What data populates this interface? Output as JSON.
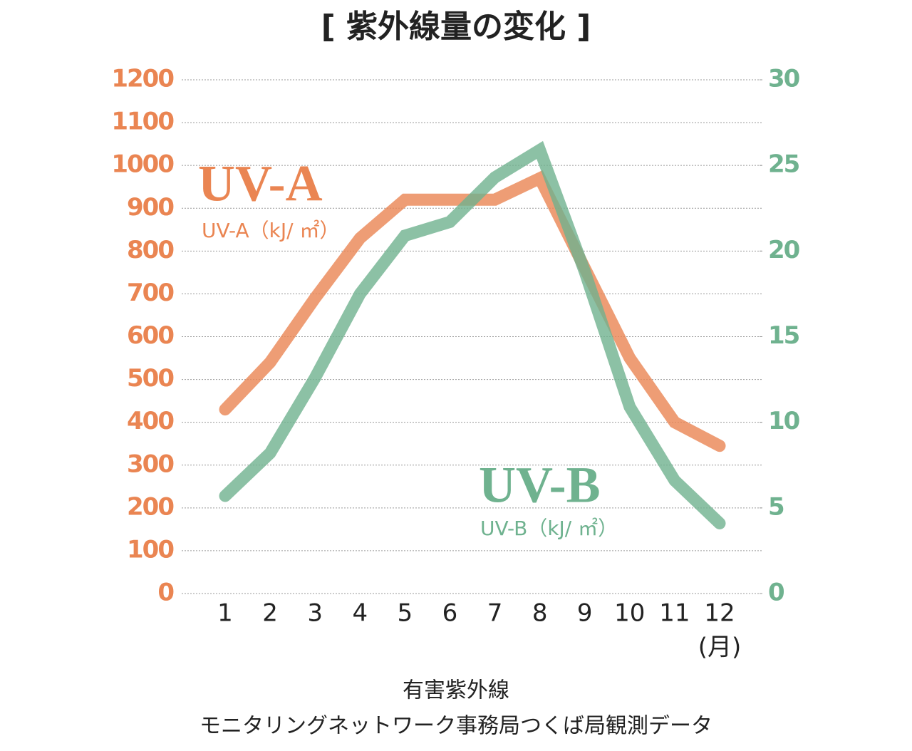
{
  "chart_data": {
    "type": "line",
    "title": "[ 紫外線量の変化 ]",
    "categories": [
      "1",
      "2",
      "3",
      "4",
      "5",
      "6",
      "7",
      "8",
      "9",
      "10",
      "11",
      "12"
    ],
    "x_unit": "(月)",
    "series": [
      {
        "name": "UV-A",
        "unit_label": "UV-A（kJ/ ㎡）",
        "color": "#ea8552",
        "values": [
          430,
          540,
          690,
          830,
          920,
          920,
          920,
          970,
          760,
          550,
          400,
          345
        ]
      },
      {
        "name": "UV-B",
        "unit_label": "UV-B（kJ/ ㎡）",
        "color": "#6fb28f",
        "axis": "y2",
        "values": [
          5.7,
          8.2,
          12.6,
          17.5,
          20.9,
          21.7,
          24.3,
          25.9,
          18.8,
          10.9,
          6.6,
          4.1
        ]
      }
    ],
    "ylim": [
      0,
      1200
    ],
    "yticks": [
      0,
      100,
      200,
      300,
      400,
      500,
      600,
      700,
      800,
      900,
      1000,
      1100,
      1200
    ],
    "y2lim": [
      0,
      30
    ],
    "y2ticks": [
      0,
      5,
      10,
      15,
      20,
      25,
      30
    ],
    "grid": true,
    "source": [
      "有害紫外線",
      "モニタリングネットワーク事務局つくば局観測データ"
    ]
  }
}
